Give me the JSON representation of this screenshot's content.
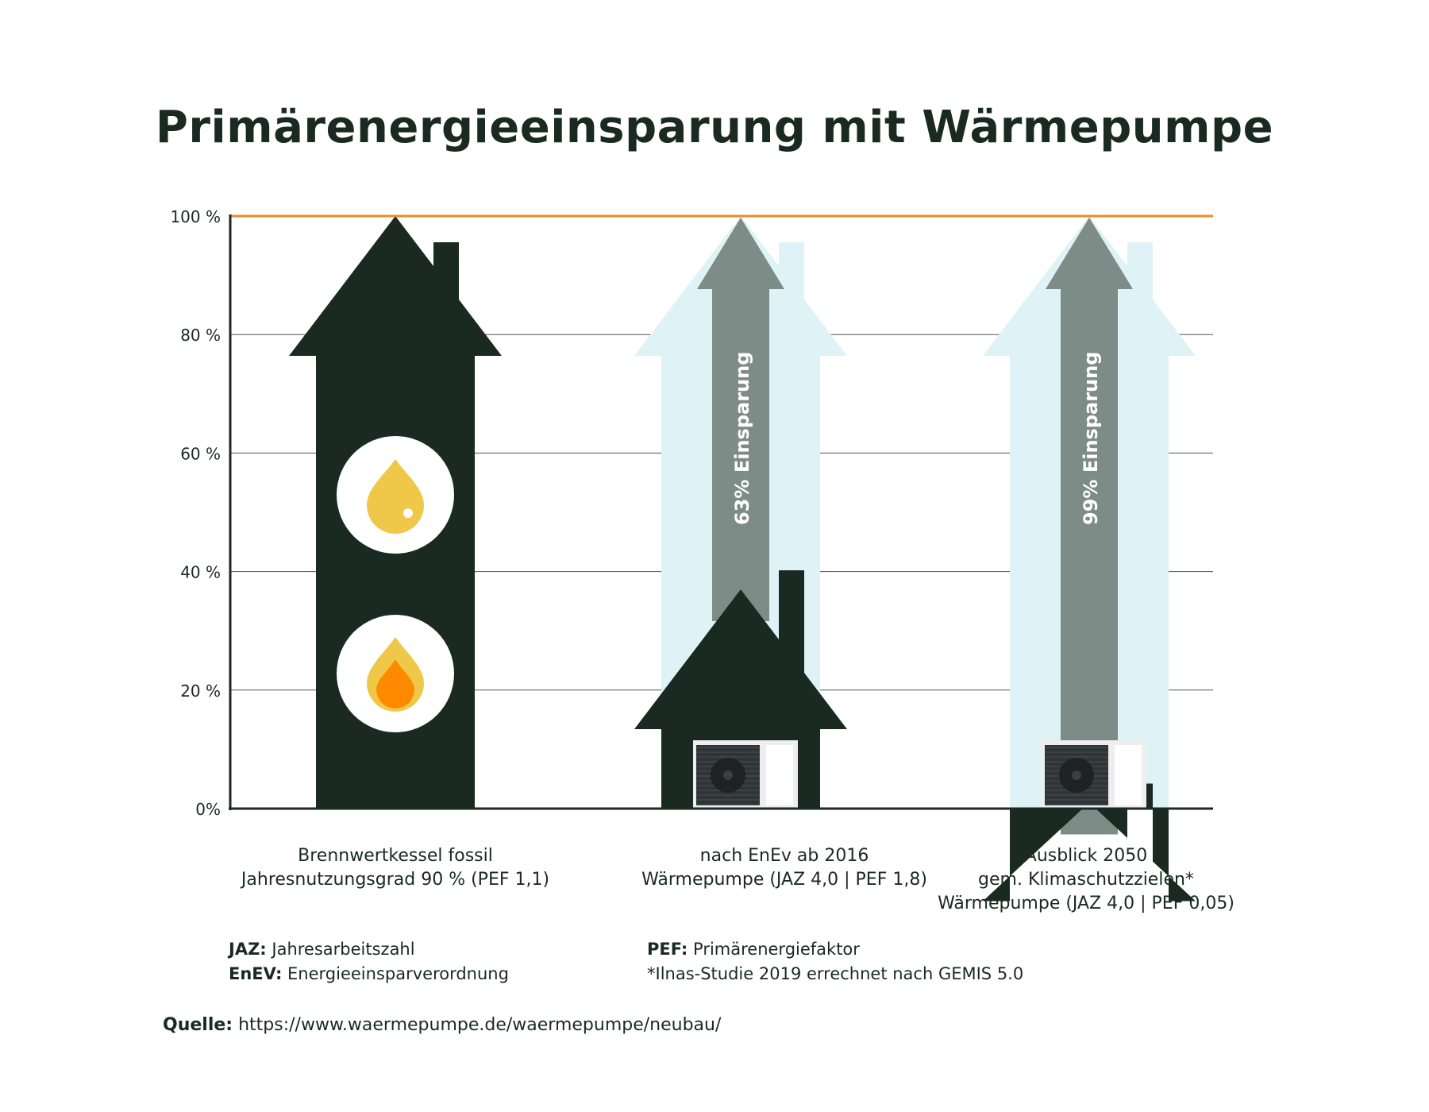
{
  "title": "Primärenergieeinsparung mit Wärmepumpe",
  "colors": {
    "dark": "#1a2a23",
    "limit_line": "#f08a24",
    "ghost_house": "#dff2f6",
    "savings_arrow": "#7d8c87",
    "oil_drop": "#efc84a",
    "flame_inner": "#ff8a00",
    "grid": "#555555",
    "unit_body": "#eeeeee",
    "fan": "#333333"
  },
  "chart_data": {
    "type": "bar",
    "title": "Primärenergieeinsparung mit Wärmepumpe",
    "ylim": [
      0,
      100
    ],
    "y_ticks": [
      {
        "value": 0,
        "label": "0%"
      },
      {
        "value": 20,
        "label": "20 %"
      },
      {
        "value": 40,
        "label": "40 %"
      },
      {
        "value": 60,
        "label": "60 %"
      },
      {
        "value": 80,
        "label": "80 %"
      },
      {
        "value": 100,
        "label": "100 %"
      }
    ],
    "reference_line": 100,
    "categories": [
      [
        "Brennwertkessel fossil",
        "Jahresnutzungsgrad 90 % (PEF 1,1)"
      ],
      [
        "nach EnEv ab 2016",
        "Wärmepumpe  (JAZ 4,0 | PEF 1,8)"
      ],
      [
        "Ausblick 2050",
        "gem. Klimaschutzzielen*",
        "Wärmepumpe  (JAZ 4,0 | PEF 0,05)"
      ]
    ],
    "values": [
      100,
      37,
      1
    ],
    "savings": [
      null,
      63,
      99
    ],
    "savings_labels": [
      "",
      "63% Einsparung",
      "99% Einsparung"
    ],
    "icons": [
      "oil-drop-icon",
      "flame-icon",
      "heat-pump-icon"
    ],
    "grid": true
  },
  "legend": {
    "left": [
      {
        "key": "JAZ:",
        "text": " Jahresarbeitszahl"
      },
      {
        "key": "EnEV:",
        "text": " Energieeinsparverordnung"
      }
    ],
    "right": [
      {
        "key": "PEF:",
        "text": " Primärenergiefaktor"
      },
      {
        "key": "",
        "text": "*Ilnas-Studie 2019 errechnet nach GEMIS 5.0"
      }
    ]
  },
  "source": {
    "label": "Quelle:",
    "url": "https://www.waermepumpe.de/waermepumpe/neubau/"
  }
}
